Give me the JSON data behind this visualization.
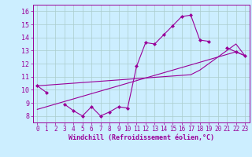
{
  "xlabel": "Windchill (Refroidissement éolien,°C)",
  "color": "#990099",
  "bg_color": "#cceeff",
  "grid_color": "#aacccc",
  "x_data": [
    0,
    1,
    2,
    3,
    4,
    5,
    6,
    7,
    8,
    9,
    10,
    11,
    12,
    13,
    14,
    15,
    16,
    17,
    18,
    19,
    20,
    21,
    22,
    23
  ],
  "y_main": [
    10.3,
    9.8,
    null,
    8.9,
    8.4,
    8.0,
    8.7,
    8.0,
    8.3,
    8.7,
    8.6,
    11.8,
    13.6,
    13.5,
    14.2,
    14.9,
    15.6,
    15.7,
    13.8,
    13.7,
    null,
    13.2,
    12.9,
    12.6
  ],
  "y_line1": [
    8.5,
    8.7,
    8.9,
    9.1,
    9.3,
    9.5,
    9.7,
    9.9,
    10.1,
    10.3,
    10.5,
    10.7,
    10.9,
    11.1,
    11.3,
    11.5,
    11.7,
    11.9,
    12.1,
    12.3,
    12.5,
    12.7,
    12.9,
    12.6
  ],
  "y_line2": [
    10.3,
    10.35,
    10.4,
    10.45,
    10.5,
    10.55,
    10.6,
    10.65,
    10.7,
    10.75,
    10.8,
    10.85,
    10.9,
    10.95,
    11.0,
    11.05,
    11.1,
    11.15,
    11.5,
    12.0,
    12.5,
    13.0,
    13.5,
    12.6
  ],
  "xlim": [
    -0.5,
    23.5
  ],
  "ylim": [
    7.5,
    16.5
  ],
  "yticks": [
    8,
    9,
    10,
    11,
    12,
    13,
    14,
    15,
    16
  ],
  "xticks": [
    0,
    1,
    2,
    3,
    4,
    5,
    6,
    7,
    8,
    9,
    10,
    11,
    12,
    13,
    14,
    15,
    16,
    17,
    18,
    19,
    20,
    21,
    22,
    23
  ]
}
